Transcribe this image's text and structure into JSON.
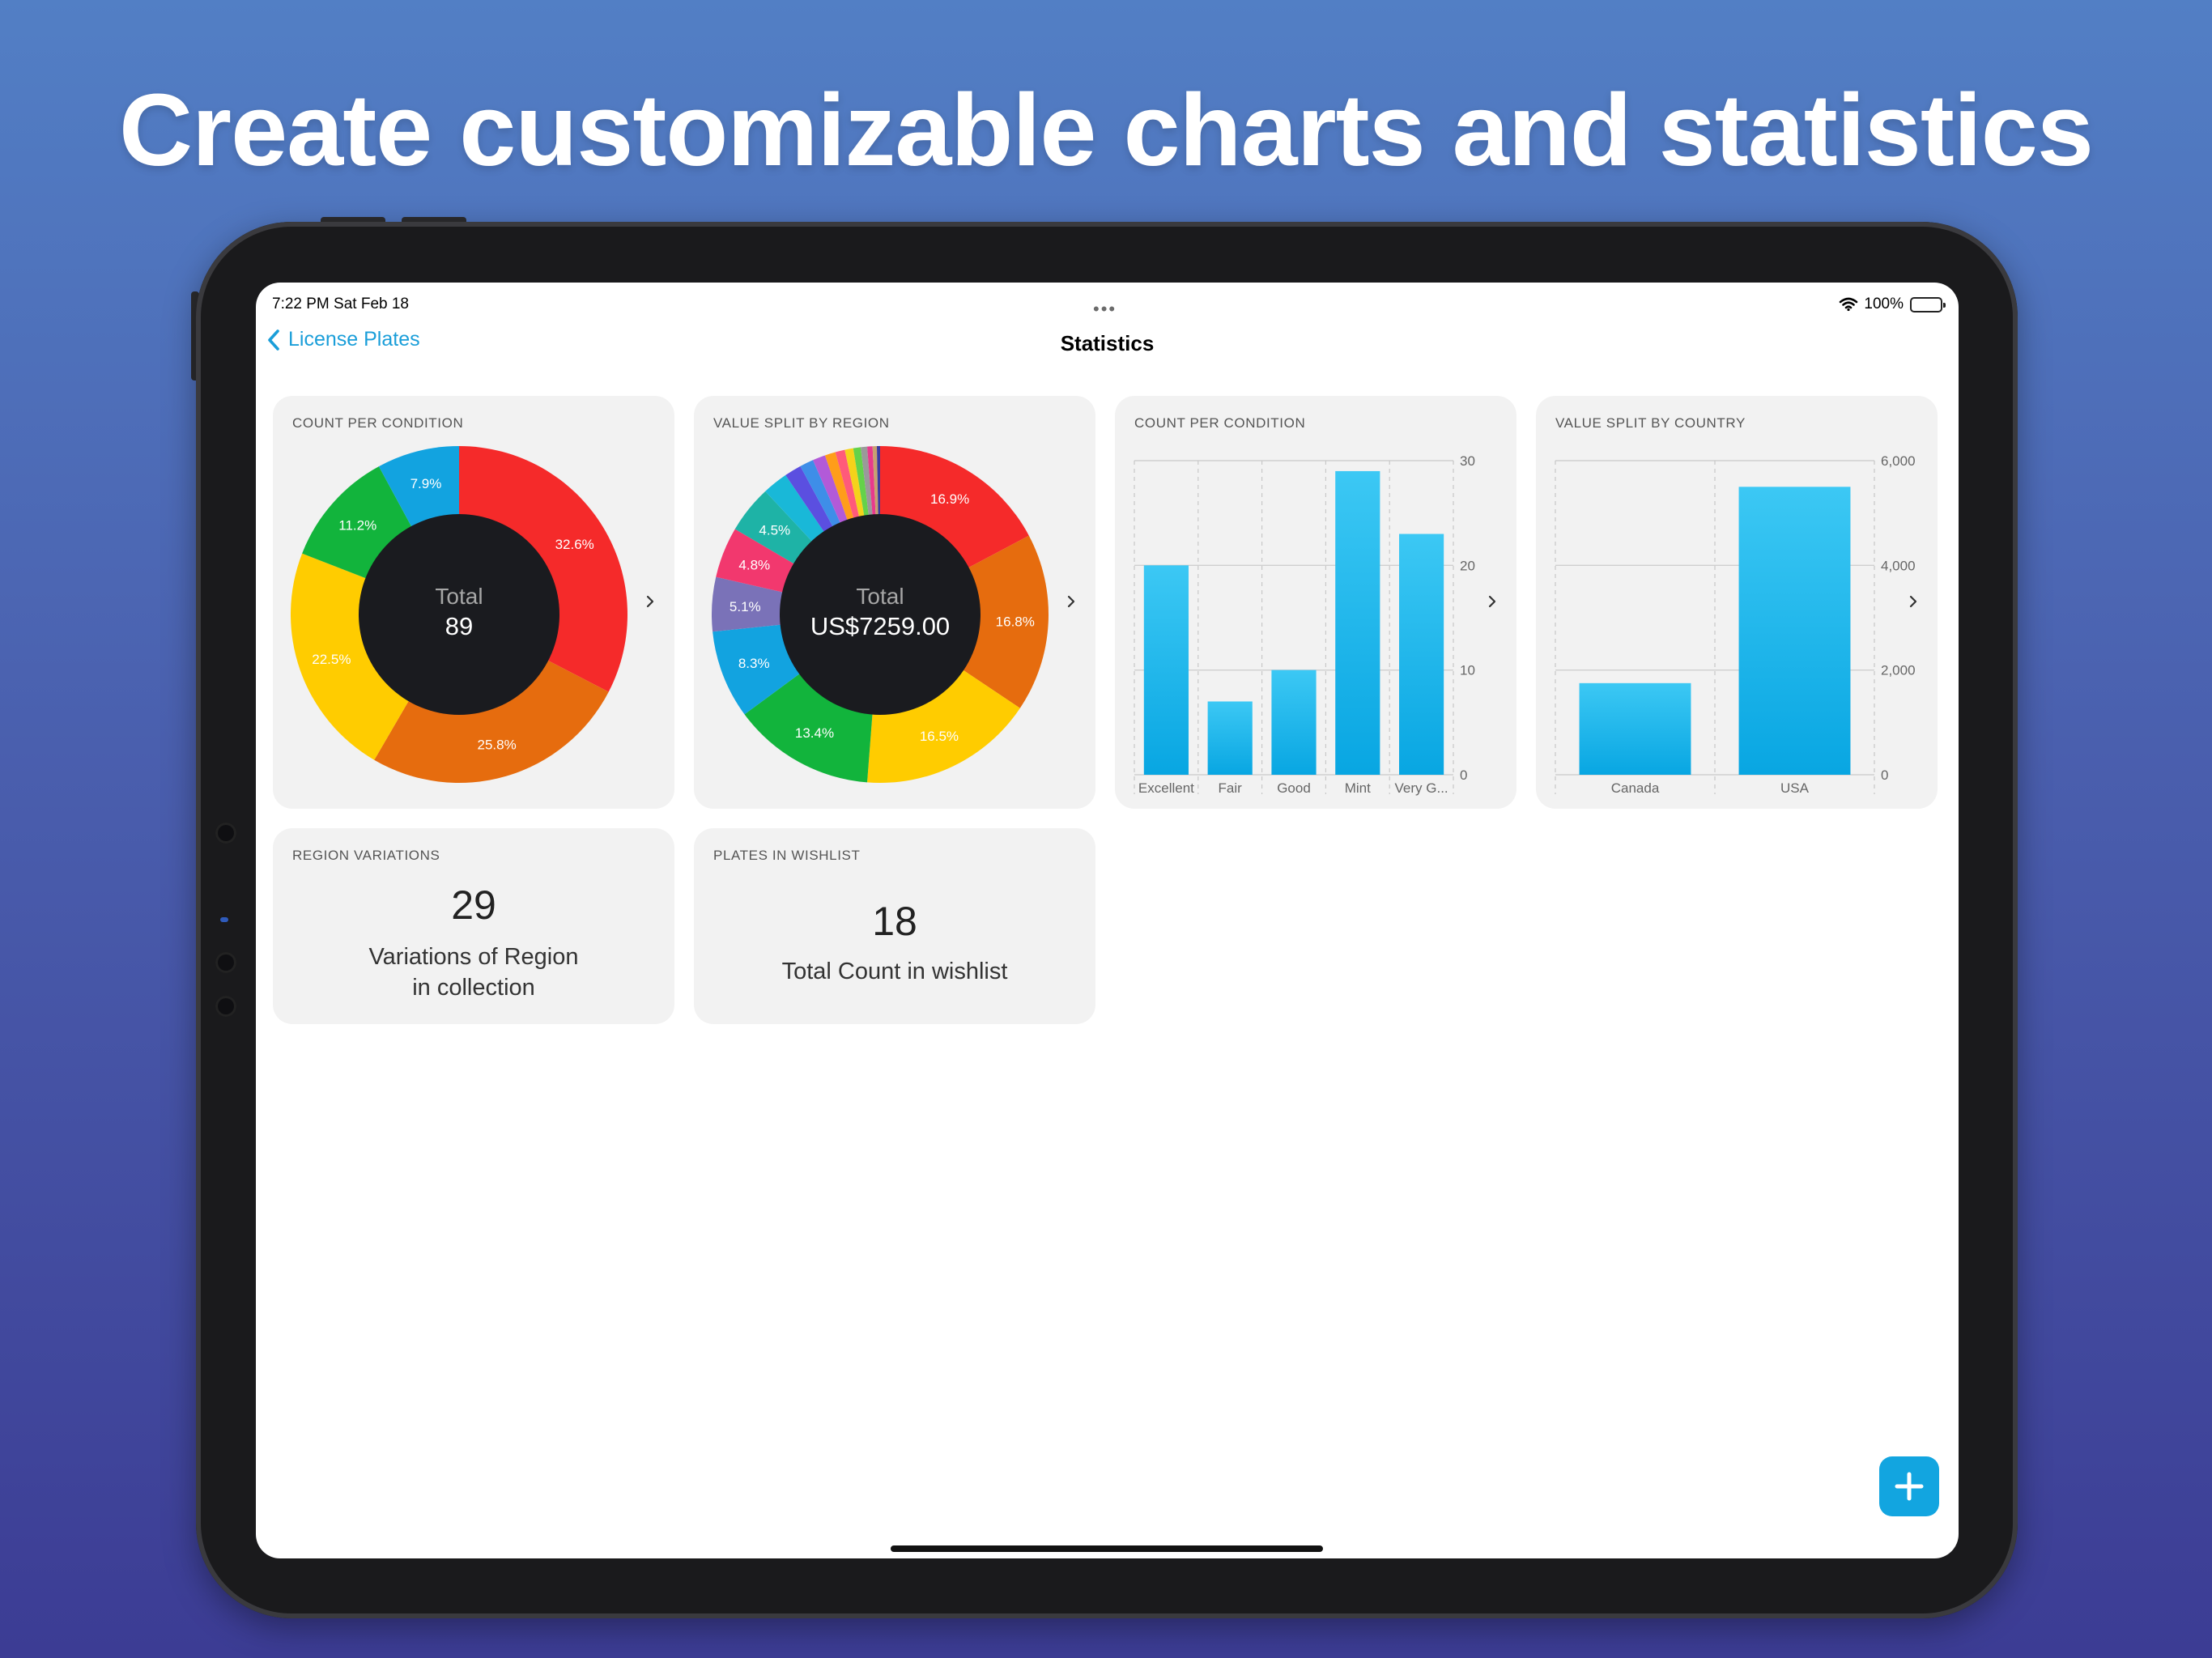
{
  "headline": "Create customizable charts and statistics",
  "status_bar": {
    "time": "7:22 PM   Sat Feb 18",
    "dots": "•••",
    "battery": "100%"
  },
  "nav": {
    "back_label": "License Plates",
    "title": "Statistics"
  },
  "colors": {
    "accent": "#1a9ed9",
    "card": "#f2f2f2",
    "bar": "#1ab4ea",
    "donut_hole": "#1a1b1f"
  },
  "icons": {
    "back": "chevron-left-icon",
    "more": "chevron-right-icon",
    "add": "plus-icon",
    "wifi": "wifi-icon",
    "battery": "battery-icon"
  },
  "cards": {
    "count_per_condition_pie": {
      "title": "COUNT PER CONDITION",
      "center_label": "Total",
      "center_value": "89"
    },
    "value_split_by_region_pie": {
      "title": "VALUE SPLIT BY REGION",
      "center_label": "Total",
      "center_value": "US$7259.00"
    },
    "count_per_condition_bar": {
      "title": "COUNT PER CONDITION"
    },
    "value_split_by_country_bar": {
      "title": "VALUE SPLIT BY COUNTRY"
    },
    "region_variations": {
      "title": "REGION VARIATIONS",
      "value": "29",
      "label_line1": "Variations of Region",
      "label_line2": "in collection"
    },
    "plates_in_wishlist": {
      "title": "PLATES IN WISHLIST",
      "value": "18",
      "label": "Total Count in wishlist"
    }
  },
  "chart_data": [
    {
      "type": "pie",
      "title": "COUNT PER CONDITION",
      "slices": [
        {
          "label": "32.6%",
          "value": 32.6,
          "color": "#f52a2a"
        },
        {
          "label": "25.8%",
          "value": 25.8,
          "color": "#e66c0e"
        },
        {
          "label": "22.5%",
          "value": 22.5,
          "color": "#ffcc00"
        },
        {
          "label": "11.2%",
          "value": 11.2,
          "color": "#12b43c"
        },
        {
          "label": "7.9%",
          "value": 7.9,
          "color": "#12a3e0"
        }
      ]
    },
    {
      "type": "pie",
      "title": "VALUE SPLIT BY REGION",
      "slices": [
        {
          "label": "16.9%",
          "value": 16.9,
          "color": "#f52a2a"
        },
        {
          "label": "16.8%",
          "value": 16.8,
          "color": "#e66c0e"
        },
        {
          "label": "16.5%",
          "value": 16.5,
          "color": "#ffcc00"
        },
        {
          "label": "13.4%",
          "value": 13.4,
          "color": "#12b43c"
        },
        {
          "label": "8.3%",
          "value": 8.3,
          "color": "#12a3e0"
        },
        {
          "label": "5.1%",
          "value": 5.1,
          "color": "#7a72b8"
        },
        {
          "label": "4.8%",
          "value": 4.8,
          "color": "#f2386e"
        },
        {
          "label": "4.5%",
          "value": 4.5,
          "color": "#1eb3a6"
        },
        {
          "label": "",
          "value": 2.4,
          "color": "#19b8d8"
        },
        {
          "label": "",
          "value": 1.6,
          "color": "#5b4fe0"
        },
        {
          "label": "",
          "value": 1.3,
          "color": "#3e8ee8"
        },
        {
          "label": "",
          "value": 1.2,
          "color": "#b25ad8"
        },
        {
          "label": "",
          "value": 1.0,
          "color": "#ff9d1a"
        },
        {
          "label": "",
          "value": 0.9,
          "color": "#ff5a7a"
        },
        {
          "label": "",
          "value": 0.8,
          "color": "#f5d21a"
        },
        {
          "label": "",
          "value": 0.7,
          "color": "#64d24a"
        },
        {
          "label": "",
          "value": 0.6,
          "color": "#9a9a9a"
        },
        {
          "label": "",
          "value": 0.5,
          "color": "#e83a8c"
        },
        {
          "label": "",
          "value": 0.4,
          "color": "#c8a070"
        },
        {
          "label": "",
          "value": 0.3,
          "color": "#3a3aa0"
        }
      ]
    },
    {
      "type": "bar",
      "title": "COUNT PER CONDITION",
      "categories": [
        "Excellent",
        "Fair",
        "Good",
        "Mint",
        "Very G..."
      ],
      "values": [
        20,
        7,
        10,
        29,
        23
      ],
      "ylim": [
        0,
        30
      ],
      "yticks": [
        "30",
        "20",
        "10",
        "0"
      ],
      "ytick_values": [
        30,
        20,
        10,
        0
      ]
    },
    {
      "type": "bar",
      "title": "VALUE SPLIT BY COUNTRY",
      "categories": [
        "Canada",
        "USA"
      ],
      "values": [
        1750,
        5500
      ],
      "ylim": [
        0,
        6000
      ],
      "yticks": [
        "6,000",
        "4,000",
        "2,000",
        "0"
      ],
      "ytick_values": [
        6000,
        4000,
        2000,
        0
      ]
    }
  ]
}
